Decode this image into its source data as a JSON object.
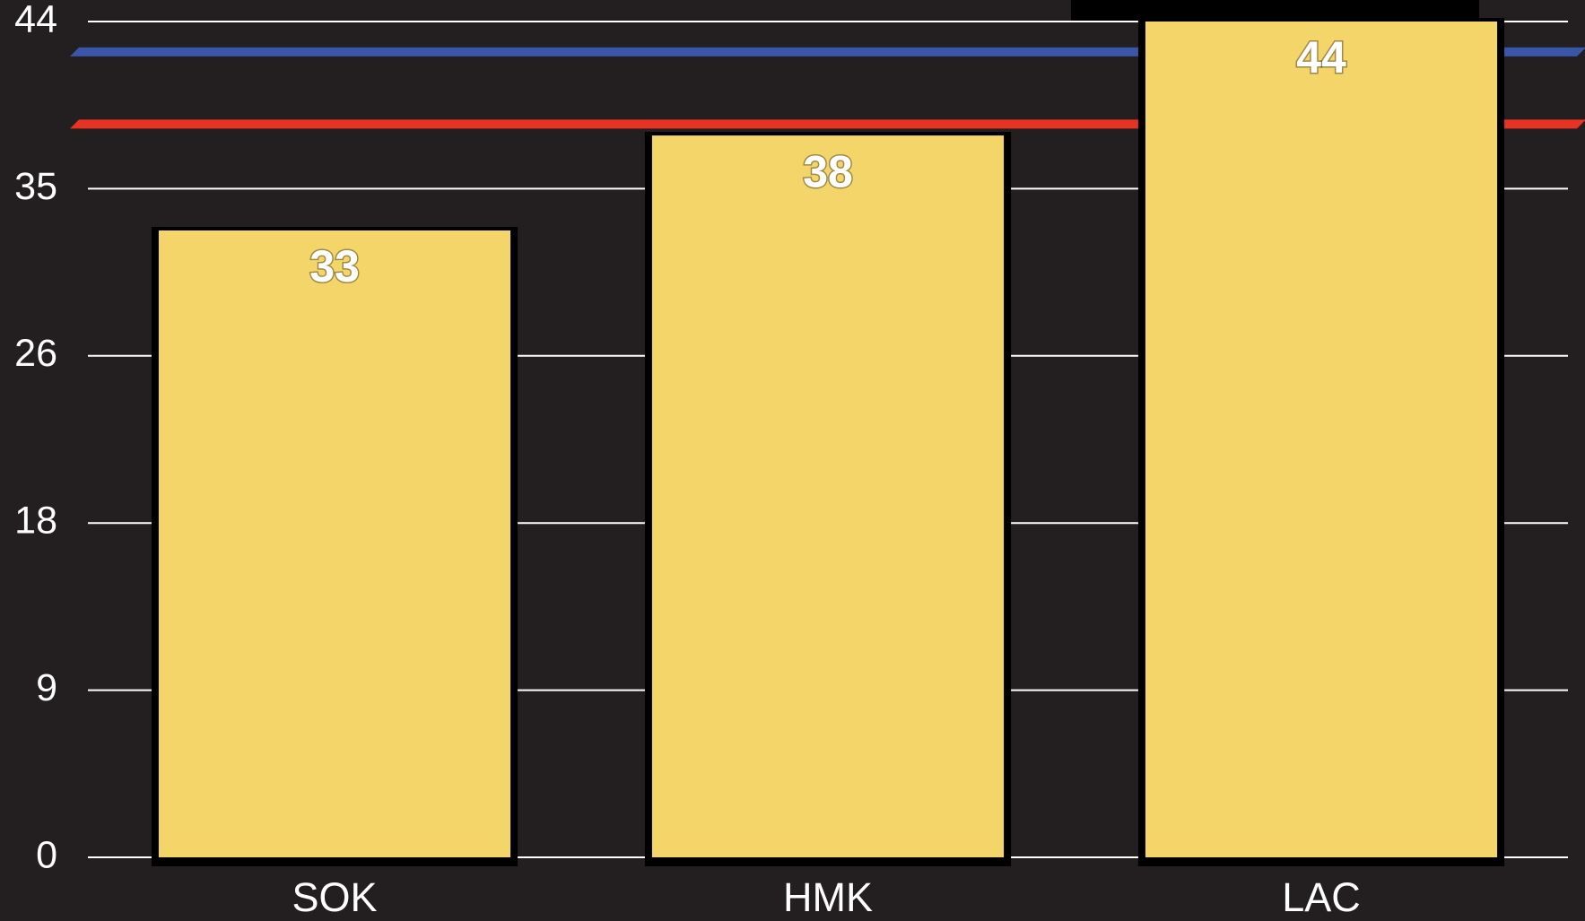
{
  "chart_data": {
    "type": "bar",
    "categories": [
      "SOK",
      "HMK",
      "LAC"
    ],
    "values": [
      33,
      38,
      44
    ],
    "color": "#f3d569",
    "ylim": [
      0,
      44
    ],
    "yticks": [
      0,
      {
        "value": 8.8,
        "label": "9"
      },
      {
        "value": 17.6,
        "label": "18"
      },
      {
        "value": 26.4,
        "label": "26"
      },
      {
        "value": 35.2,
        "label": "35"
      },
      44
    ],
    "grid": true,
    "reference_lines": [
      {
        "value": 42.4,
        "color": "#3a56a8"
      },
      {
        "value": 38.6,
        "color": "#e63323"
      }
    ]
  }
}
